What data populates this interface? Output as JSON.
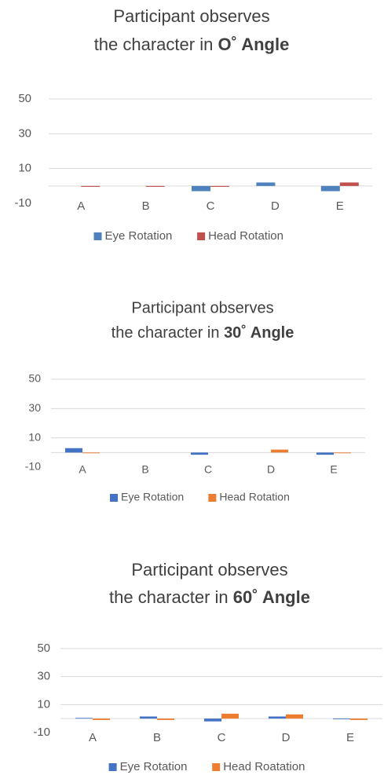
{
  "chart_data": [
    {
      "type": "bar",
      "title": {
        "line1": "Participant observes",
        "line2": "the character in",
        "emphasis": "O˚ Angle"
      },
      "categories": [
        "A",
        "B",
        "C",
        "D",
        "E"
      ],
      "series": [
        {
          "name": "Eye Rotation",
          "color": "#4f81bd",
          "values": [
            0,
            0,
            -3,
            2,
            -3
          ]
        },
        {
          "name": "Head Rotation",
          "color": "#c0504d",
          "values": [
            -0.5,
            -0.5,
            -0.5,
            0,
            2
          ]
        }
      ],
      "ylim": [
        -10,
        50
      ],
      "yticks": [
        -10,
        10,
        30,
        50
      ],
      "grid": true,
      "legend": "bottom"
    },
    {
      "type": "bar",
      "title": {
        "line1": "Participant observes",
        "line2": "the character in",
        "emphasis": "30˚ Angle"
      },
      "categories": [
        "A",
        "B",
        "C",
        "D",
        "E"
      ],
      "series": [
        {
          "name": "Eye Rotation",
          "color": "#4472c4",
          "values": [
            3,
            0,
            -1.5,
            0,
            -1.5
          ]
        },
        {
          "name": "Head Rotation",
          "color": "#ed7d31",
          "values": [
            -0.5,
            0,
            0,
            2,
            -0.5
          ]
        }
      ],
      "ylim": [
        -10,
        50
      ],
      "yticks": [
        -10,
        10,
        30,
        50
      ],
      "grid": true,
      "legend": "bottom"
    },
    {
      "type": "bar",
      "title": {
        "line1": "Participant observes",
        "line2": "the character in",
        "emphasis": "60˚ Angle"
      },
      "categories": [
        "A",
        "B",
        "C",
        "D",
        "E"
      ],
      "series": [
        {
          "name": "Eye Rotation",
          "color": "#4472c4",
          "values": [
            0.5,
            1.5,
            -2,
            1.5,
            -0.5
          ]
        },
        {
          "name": "Head Roatation",
          "color": "#ed7d31",
          "values": [
            -1,
            -1,
            3.5,
            3,
            -1
          ]
        }
      ],
      "ylim": [
        -10,
        50
      ],
      "yticks": [
        -10,
        10,
        30,
        50
      ],
      "grid": true,
      "legend": "bottom"
    }
  ]
}
